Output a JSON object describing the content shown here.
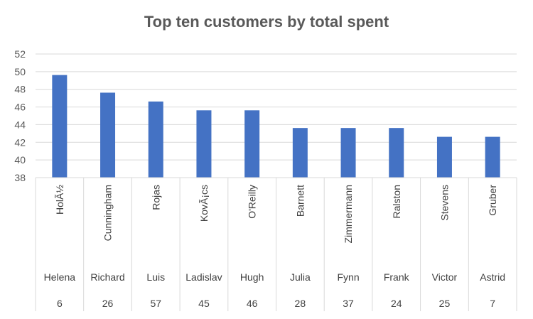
{
  "chart_data": {
    "type": "bar",
    "title": "Top ten customers by total spent",
    "xlabel": "",
    "ylabel": "",
    "ylim": [
      38,
      52
    ],
    "yticks": [
      38,
      40,
      42,
      44,
      46,
      48,
      50,
      52
    ],
    "grid": true,
    "legend": "none",
    "bar_color": "#4472C4",
    "categories": [
      {
        "last_name": "HolÃ½",
        "first_name": "Helena",
        "id": "6"
      },
      {
        "last_name": "Cunningham",
        "first_name": "Richard",
        "id": "26"
      },
      {
        "last_name": "Rojas",
        "first_name": "Luis",
        "id": "57"
      },
      {
        "last_name": "KovÃ¡cs",
        "first_name": "Ladislav",
        "id": "45"
      },
      {
        "last_name": "O'Reilly",
        "first_name": "Hugh",
        "id": "46"
      },
      {
        "last_name": "Barnett",
        "first_name": "Julia",
        "id": "28"
      },
      {
        "last_name": "Zimmermann",
        "first_name": "Fynn",
        "id": "37"
      },
      {
        "last_name": "Ralston",
        "first_name": "Frank",
        "id": "24"
      },
      {
        "last_name": "Stevens",
        "first_name": "Victor",
        "id": "25"
      },
      {
        "last_name": "Gruber",
        "first_name": "Astrid",
        "id": "7"
      }
    ],
    "values": [
      49.62,
      47.62,
      46.62,
      45.62,
      45.62,
      43.62,
      43.62,
      43.62,
      42.62,
      42.62
    ]
  }
}
